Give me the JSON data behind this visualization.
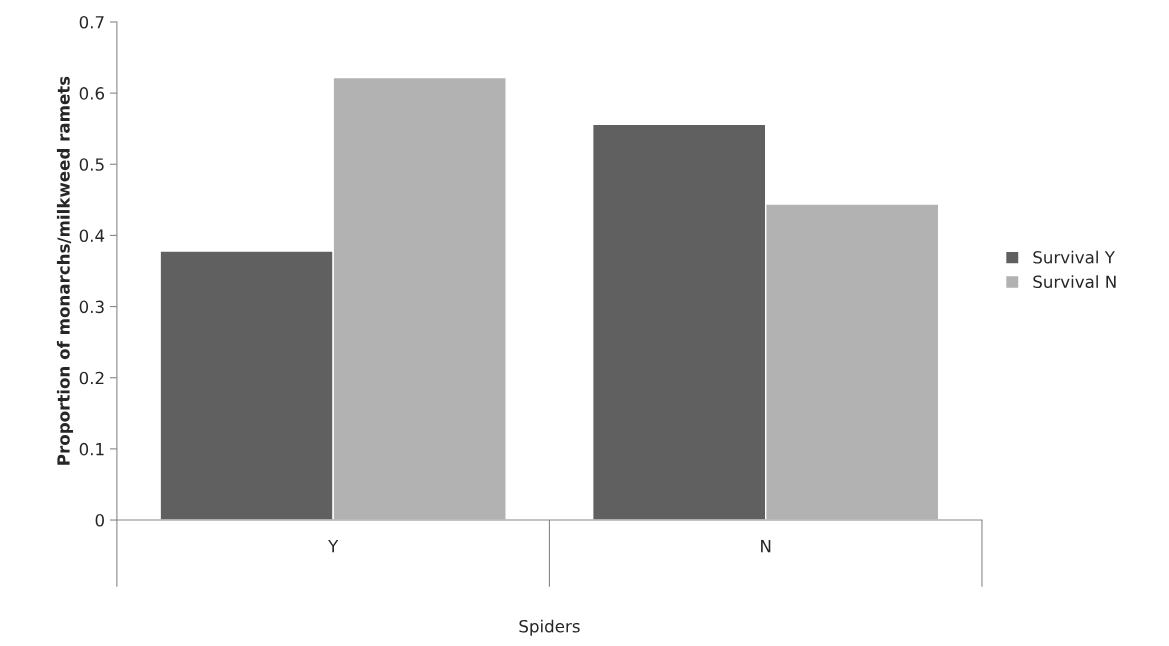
{
  "chart_data": {
    "type": "bar",
    "xlabel": "Spiders",
    "ylabel": "Proportion of monarchs/milkweed ramets",
    "categories": [
      "Y",
      "N"
    ],
    "series": [
      {
        "name": "Survival Y",
        "color": "#606060",
        "values": [
          0.378,
          0.556
        ]
      },
      {
        "name": "Survival N",
        "color": "#b2b2b2",
        "values": [
          0.622,
          0.444
        ]
      }
    ],
    "ylim": [
      0,
      0.7
    ],
    "yticks": [
      {
        "value": 0,
        "label": "0"
      },
      0.1,
      0.2,
      0.3,
      0.4,
      0.5,
      0.6,
      0.7
    ],
    "grid": false,
    "legend": "right"
  }
}
